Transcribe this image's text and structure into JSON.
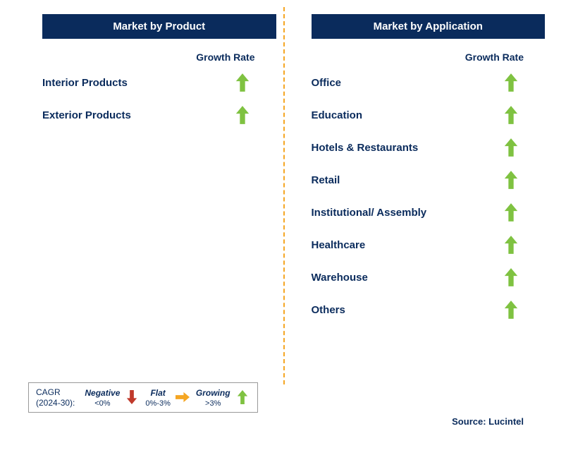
{
  "colors": {
    "header_bg": "#0a2b5c",
    "header_text": "#ffffff",
    "text_color": "#0a2b5c",
    "arrow_grow": "#7fc241",
    "arrow_flat": "#f5a623",
    "arrow_neg": "#c0392b",
    "divider": "#f5a623",
    "legend_border": "#999999",
    "background": "#ffffff"
  },
  "divider_dash": "5,4",
  "left": {
    "header": "Market by Product",
    "growth_label": "Growth Rate",
    "rows": [
      {
        "label": "Interior Products",
        "growth": "grow"
      },
      {
        "label": "Exterior Products",
        "growth": "grow"
      }
    ]
  },
  "right": {
    "header": "Market by Application",
    "growth_label": "Growth Rate",
    "rows": [
      {
        "label": "Office",
        "growth": "grow"
      },
      {
        "label": "Education",
        "growth": "grow"
      },
      {
        "label": "Hotels & Restaurants",
        "growth": "grow"
      },
      {
        "label": "Retail",
        "growth": "grow"
      },
      {
        "label": "Institutional/ Assembly",
        "growth": "grow"
      },
      {
        "label": "Healthcare",
        "growth": "grow"
      },
      {
        "label": "Warehouse",
        "growth": "grow"
      },
      {
        "label": "Others",
        "growth": "grow"
      }
    ]
  },
  "legend": {
    "title_1": "CAGR",
    "title_2": "(2024-30):",
    "items": [
      {
        "label": "Negative",
        "sub": "<0%",
        "arrow": "neg"
      },
      {
        "label": "Flat",
        "sub": "0%-3%",
        "arrow": "flat"
      },
      {
        "label": "Growing",
        "sub": ">3%",
        "arrow": "grow"
      }
    ]
  },
  "source": "Source: Lucintel"
}
